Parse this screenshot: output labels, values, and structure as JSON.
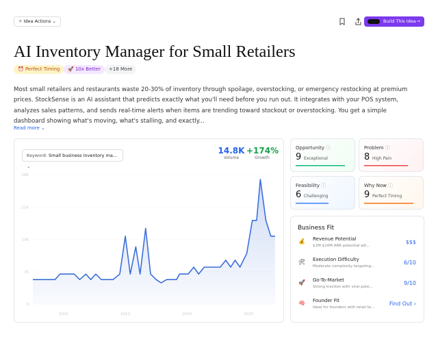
{
  "header": {
    "actions": "Idea Actions",
    "build": "Build This Idea"
  },
  "title": "AI Inventory Manager for Small Retailers",
  "tags": [
    "Perfect Timing",
    "10x Better",
    "+18 More"
  ],
  "description": "Most small retailers and restaurants waste 20-30% of inventory through spoilage, overstocking, or emergency restocking at premium prices. StockSense is an AI assistant that predicts exactly what you'll need before you run out. It integrates with your POS system, analyzes sales patterns, and sends real-time alerts when items are trending toward stockout or overstocking. You get a simple dashboard showing what's moving, what's stalling, and exactly...",
  "read_more": "Read more",
  "keyword": {
    "label": "Keyword:",
    "value": "Small business inventory ma..."
  },
  "metrics": [
    {
      "value": "14.8K",
      "label": "Volume"
    },
    {
      "value": "+174%",
      "label": "Growth"
    }
  ],
  "chart_data": {
    "type": "line",
    "color": "#3b6fd8",
    "x": [
      2021.5,
      2021.86,
      2021.94,
      2022.17,
      2022.26,
      2022.36,
      2022.44,
      2022.52,
      2022.61,
      2022.8,
      2022.91,
      2023.0,
      2023.08,
      2023.17,
      2023.24,
      2023.33,
      2023.41,
      2023.5,
      2023.58,
      2023.67,
      2023.83,
      2023.88,
      2024.02,
      2024.11,
      2024.19,
      2024.28,
      2024.36,
      2024.54,
      2024.63,
      2024.71,
      2024.78,
      2024.86,
      2024.97,
      2025.06,
      2025.13,
      2025.19,
      2025.28,
      2025.36,
      2025.43
    ],
    "series": [
      {
        "name": "Volume",
        "color": "#3b6fd8",
        "values": [
          5300,
          5300,
          6500,
          6500,
          5300,
          6500,
          5300,
          6500,
          5300,
          5300,
          6500,
          14700,
          6500,
          12400,
          6500,
          16400,
          6500,
          5300,
          4600,
          5300,
          5300,
          6500,
          6500,
          8000,
          6500,
          8000,
          8000,
          8000,
          9500,
          8000,
          9500,
          8000,
          11000,
          18100,
          18100,
          27000,
          18100,
          14700,
          14700
        ]
      }
    ],
    "xlim": [
      2021.5,
      2025.43
    ],
    "xticks": [
      2022,
      2023,
      2024,
      2025
    ],
    "ylim": [
      0,
      28000
    ],
    "yticks": [
      0,
      {
        "value": 7000,
        "label": "7K"
      },
      {
        "value": 14000,
        "label": "14K"
      },
      {
        "value": 21000,
        "label": "21K"
      },
      {
        "value": 28000,
        "label": "28K"
      }
    ]
  },
  "scores": [
    {
      "title": "Opportunity",
      "score": 9,
      "label": "Exceptional",
      "color": "#10b981"
    },
    {
      "title": "Problem",
      "score": 8,
      "label": "High Pain",
      "color": "#ef4444"
    },
    {
      "title": "Feasibility",
      "score": 6,
      "label": "Challenging",
      "color": "#3b82f6"
    },
    {
      "title": "Why Now",
      "score": 9,
      "label": "Perfect Timing",
      "color": "#f97316"
    }
  ],
  "business_fit": {
    "title": "Business Fit",
    "rows": [
      {
        "title": "Revenue Potential",
        "subtitle": "$1M-$10M ARR potential wit...",
        "value": "$$$"
      },
      {
        "title": "Execution Difficulty",
        "subtitle": "Moderate complexity targeting...",
        "value": "6/10"
      },
      {
        "title": "Go-To-Market",
        "subtitle": "Strong traction with viral pote...",
        "value": "9/10"
      },
      {
        "title": "Founder Fit",
        "subtitle": "Ideal for founders with retail te...",
        "value": "Find Out"
      }
    ]
  }
}
